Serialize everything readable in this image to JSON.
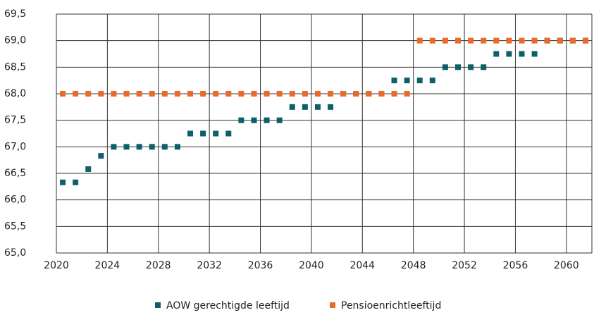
{
  "chart_data": {
    "type": "scatter",
    "categories": [
      "2020",
      null,
      null,
      null,
      "2024",
      null,
      null,
      null,
      "2028",
      null,
      null,
      null,
      "2032",
      null,
      null,
      null,
      "2036",
      null,
      null,
      null,
      "2040",
      null,
      null,
      null,
      "2044",
      null,
      null,
      null,
      "2048",
      null,
      null,
      null,
      "2052",
      null,
      null,
      null,
      "2056",
      null,
      null,
      null,
      "2060",
      null
    ],
    "series": [
      {
        "name": "AOW gerechtigde leeftijd",
        "color": "#0d5f6a",
        "values": [
          66.33,
          66.33,
          66.58,
          66.83,
          67,
          67,
          67,
          67,
          67,
          67,
          67.25,
          67.25,
          67.25,
          67.25,
          67.5,
          67.5,
          67.5,
          67.5,
          67.75,
          67.75,
          67.75,
          67.75,
          68,
          68,
          68,
          68,
          68.25,
          68.25,
          68.25,
          68.25,
          68.5,
          68.5,
          68.5,
          68.5,
          68.75,
          68.75,
          68.75,
          68.75,
          69,
          69,
          69,
          69
        ]
      },
      {
        "name": "Pensioenrichtleeftijd",
        "color": "#ea6a2a",
        "values": [
          68,
          68,
          68,
          68,
          68,
          68,
          68,
          68,
          68,
          68,
          68,
          68,
          68,
          68,
          68,
          68,
          68,
          68,
          68,
          68,
          68,
          68,
          68,
          68,
          68,
          68,
          68,
          68,
          69,
          69,
          69,
          69,
          69,
          69,
          69,
          69,
          69,
          69,
          69,
          69,
          69,
          69
        ]
      }
    ],
    "ylim": [
      65,
      69.5
    ],
    "yticks": [
      {
        "value": 65,
        "label": "65,0"
      },
      {
        "value": 65.5,
        "label": "65,5"
      },
      {
        "value": 66,
        "label": "66,0"
      },
      {
        "value": 66.5,
        "label": "66,5"
      },
      {
        "value": 67,
        "label": "67,0"
      },
      {
        "value": 67.5,
        "label": "67,5"
      },
      {
        "value": 68,
        "label": "68,0"
      },
      {
        "value": 68.5,
        "label": "68,5"
      },
      {
        "value": 69,
        "label": "69,0"
      },
      {
        "value": 69.5,
        "label": "69,5"
      }
    ],
    "grid": true,
    "legend": "bottom"
  }
}
